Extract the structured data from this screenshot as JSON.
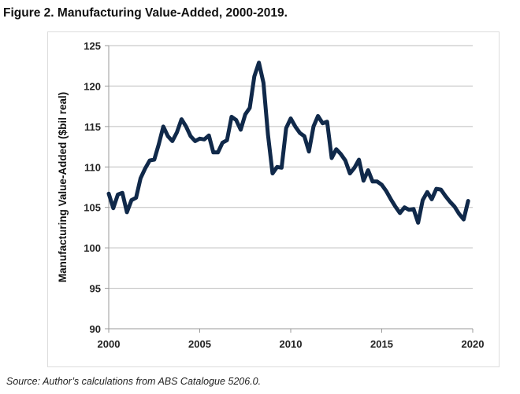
{
  "title": "Figure 2. Manufacturing Value-Added, 2000-2019.",
  "source": "Source: Author’s calculations from ABS Catalogue 5206.0.",
  "chart_data": {
    "type": "line",
    "title": "Figure 2. Manufacturing Value-Added, 2000-2019.",
    "xlabel": "",
    "ylabel": "Manufacturing Value-Added ($bil real)",
    "xlim": [
      2000,
      2020
    ],
    "ylim": [
      90,
      125
    ],
    "xticks": [
      2000,
      2005,
      2010,
      2015,
      2020
    ],
    "yticks": [
      90,
      95,
      100,
      105,
      110,
      115,
      120,
      125
    ],
    "grid": "horizontal",
    "line_color": "#10294a",
    "series": [
      {
        "name": "Manufacturing Value-Added",
        "x": [
          2000,
          2000.25,
          2000.5,
          2000.75,
          2001,
          2001.25,
          2001.5,
          2001.75,
          2002,
          2002.25,
          2002.5,
          2002.75,
          2003,
          2003.25,
          2003.5,
          2003.75,
          2004,
          2004.25,
          2004.5,
          2004.75,
          2005,
          2005.25,
          2005.5,
          2005.75,
          2006,
          2006.25,
          2006.5,
          2006.75,
          2007,
          2007.25,
          2007.5,
          2007.75,
          2008,
          2008.25,
          2008.5,
          2008.75,
          2009,
          2009.25,
          2009.5,
          2009.75,
          2010,
          2010.25,
          2010.5,
          2010.75,
          2011,
          2011.25,
          2011.5,
          2011.75,
          2012,
          2012.25,
          2012.5,
          2012.75,
          2013,
          2013.25,
          2013.5,
          2013.75,
          2014,
          2014.25,
          2014.5,
          2014.75,
          2015,
          2015.25,
          2015.5,
          2015.75,
          2016,
          2016.25,
          2016.5,
          2016.75,
          2017,
          2017.25,
          2017.5,
          2017.75,
          2018,
          2018.25,
          2018.5,
          2018.75,
          2019,
          2019.25,
          2019.5,
          2019.75
        ],
        "values": [
          106.7,
          104.9,
          106.6,
          106.8,
          104.4,
          105.9,
          106.2,
          108.6,
          109.8,
          110.8,
          110.9,
          112.8,
          115.0,
          113.8,
          113.2,
          114.3,
          115.9,
          115.0,
          113.8,
          113.2,
          113.5,
          113.4,
          113.9,
          111.8,
          111.8,
          113.0,
          113.3,
          116.2,
          115.8,
          114.6,
          116.5,
          117.3,
          121.2,
          122.9,
          120.4,
          114.0,
          109.2,
          110.0,
          109.9,
          114.8,
          116.0,
          115.0,
          114.2,
          113.8,
          111.9,
          115.0,
          116.3,
          115.4,
          115.6,
          111.1,
          112.2,
          111.6,
          110.8,
          109.2,
          109.9,
          110.9,
          108.3,
          109.6,
          108.2,
          108.2,
          107.8,
          107.0,
          106.0,
          105.1,
          104.3,
          105.0,
          104.7,
          104.8,
          103.1,
          105.9,
          106.9,
          106.0,
          107.3,
          107.2,
          106.4,
          105.7,
          105.1,
          104.2,
          103.5,
          105.8
        ]
      }
    ]
  }
}
